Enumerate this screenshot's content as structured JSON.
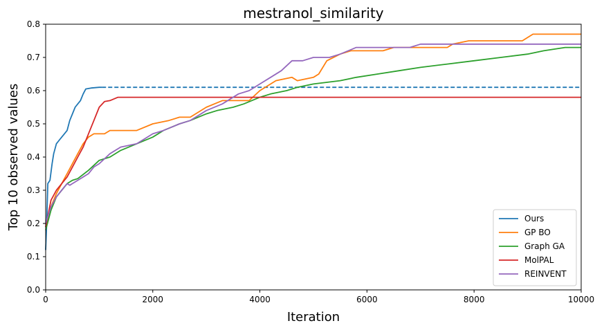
{
  "chart_data": {
    "type": "line",
    "title": "mestranol_similarity",
    "xlabel": "Iteration",
    "ylabel": "Top 10 observed values",
    "xlim": [
      0,
      10000
    ],
    "ylim": [
      0,
      0.8
    ],
    "x_ticks": [
      0,
      2000,
      4000,
      6000,
      8000,
      10000
    ],
    "x_tick_labels": [
      "0",
      "2000",
      "4000",
      "6000",
      "8000",
      "10000"
    ],
    "y_ticks": [
      0,
      0.1,
      0.2,
      0.3,
      0.4,
      0.5,
      0.6,
      0.7,
      0.8
    ],
    "y_tick_labels": [
      "0.0",
      "0.1",
      "0.2",
      "0.3",
      "0.4",
      "0.5",
      "0.6",
      "0.7",
      "0.8"
    ],
    "grid": false,
    "legend_position": "lower-right",
    "series": [
      {
        "name": "Ours",
        "color": "#1f77b4",
        "style": "solid",
        "points": [
          [
            0,
            0.12
          ],
          [
            20,
            0.2
          ],
          [
            40,
            0.32
          ],
          [
            80,
            0.33
          ],
          [
            120,
            0.38
          ],
          [
            150,
            0.41
          ],
          [
            200,
            0.44
          ],
          [
            250,
            0.45
          ],
          [
            300,
            0.46
          ],
          [
            350,
            0.47
          ],
          [
            400,
            0.48
          ],
          [
            450,
            0.51
          ],
          [
            500,
            0.53
          ],
          [
            550,
            0.55
          ],
          [
            600,
            0.56
          ],
          [
            650,
            0.57
          ],
          [
            700,
            0.59
          ],
          [
            750,
            0.605
          ],
          [
            850,
            0.608
          ],
          [
            1000,
            0.61
          ],
          [
            1050,
            0.61
          ]
        ],
        "extension": {
          "style": "dashed",
          "from_x": 1050,
          "to_x": 10000,
          "y": 0.61
        }
      },
      {
        "name": "GP BO",
        "color": "#ff7f0e",
        "style": "solid",
        "points": [
          [
            0,
            0.19
          ],
          [
            100,
            0.25
          ],
          [
            200,
            0.29
          ],
          [
            300,
            0.32
          ],
          [
            400,
            0.35
          ],
          [
            500,
            0.38
          ],
          [
            600,
            0.41
          ],
          [
            700,
            0.44
          ],
          [
            800,
            0.46
          ],
          [
            900,
            0.47
          ],
          [
            1100,
            0.47
          ],
          [
            1200,
            0.48
          ],
          [
            1700,
            0.48
          ],
          [
            2000,
            0.5
          ],
          [
            2300,
            0.51
          ],
          [
            2500,
            0.52
          ],
          [
            2700,
            0.52
          ],
          [
            3000,
            0.55
          ],
          [
            3300,
            0.57
          ],
          [
            3800,
            0.57
          ],
          [
            4000,
            0.6
          ],
          [
            4300,
            0.63
          ],
          [
            4600,
            0.64
          ],
          [
            4700,
            0.63
          ],
          [
            5000,
            0.64
          ],
          [
            5100,
            0.65
          ],
          [
            5250,
            0.69
          ],
          [
            5500,
            0.71
          ],
          [
            5700,
            0.72
          ],
          [
            6300,
            0.72
          ],
          [
            6500,
            0.73
          ],
          [
            7500,
            0.73
          ],
          [
            7600,
            0.74
          ],
          [
            7900,
            0.75
          ],
          [
            8900,
            0.75
          ],
          [
            9100,
            0.77
          ],
          [
            10000,
            0.77
          ]
        ]
      },
      {
        "name": "Graph GA",
        "color": "#2ca02c",
        "style": "solid",
        "points": [
          [
            0,
            0.18
          ],
          [
            100,
            0.24
          ],
          [
            200,
            0.28
          ],
          [
            300,
            0.3
          ],
          [
            400,
            0.32
          ],
          [
            500,
            0.33
          ],
          [
            600,
            0.335
          ],
          [
            800,
            0.36
          ],
          [
            1000,
            0.39
          ],
          [
            1200,
            0.4
          ],
          [
            1400,
            0.42
          ],
          [
            1700,
            0.44
          ],
          [
            2000,
            0.46
          ],
          [
            2200,
            0.48
          ],
          [
            2500,
            0.5
          ],
          [
            2700,
            0.51
          ],
          [
            3000,
            0.53
          ],
          [
            3200,
            0.54
          ],
          [
            3500,
            0.55
          ],
          [
            3700,
            0.56
          ],
          [
            4000,
            0.58
          ],
          [
            4200,
            0.59
          ],
          [
            4500,
            0.6
          ],
          [
            4700,
            0.61
          ],
          [
            5000,
            0.62
          ],
          [
            5500,
            0.63
          ],
          [
            5800,
            0.64
          ],
          [
            6200,
            0.65
          ],
          [
            6600,
            0.66
          ],
          [
            7000,
            0.67
          ],
          [
            7500,
            0.68
          ],
          [
            8000,
            0.69
          ],
          [
            8500,
            0.7
          ],
          [
            9000,
            0.71
          ],
          [
            9300,
            0.72
          ],
          [
            9700,
            0.73
          ],
          [
            10000,
            0.73
          ]
        ]
      },
      {
        "name": "MolPAL",
        "color": "#d62728",
        "style": "solid",
        "points": [
          [
            0,
            0.19
          ],
          [
            100,
            0.27
          ],
          [
            200,
            0.3
          ],
          [
            300,
            0.32
          ],
          [
            400,
            0.34
          ],
          [
            500,
            0.37
          ],
          [
            600,
            0.4
          ],
          [
            700,
            0.43
          ],
          [
            800,
            0.47
          ],
          [
            900,
            0.51
          ],
          [
            1000,
            0.55
          ],
          [
            1100,
            0.567
          ],
          [
            1200,
            0.57
          ],
          [
            1350,
            0.58
          ],
          [
            1500,
            0.58
          ],
          [
            10000,
            0.58
          ]
        ]
      },
      {
        "name": "REINVENT",
        "color": "#9467bd",
        "style": "solid",
        "points": [
          [
            0,
            0.2
          ],
          [
            100,
            0.25
          ],
          [
            200,
            0.28
          ],
          [
            300,
            0.3
          ],
          [
            400,
            0.32
          ],
          [
            450,
            0.315
          ],
          [
            500,
            0.32
          ],
          [
            600,
            0.33
          ],
          [
            700,
            0.34
          ],
          [
            800,
            0.35
          ],
          [
            900,
            0.37
          ],
          [
            1000,
            0.38
          ],
          [
            1200,
            0.41
          ],
          [
            1400,
            0.43
          ],
          [
            1700,
            0.44
          ],
          [
            2000,
            0.47
          ],
          [
            2200,
            0.48
          ],
          [
            2500,
            0.5
          ],
          [
            2700,
            0.51
          ],
          [
            3000,
            0.54
          ],
          [
            3300,
            0.56
          ],
          [
            3600,
            0.59
          ],
          [
            3800,
            0.6
          ],
          [
            4000,
            0.62
          ],
          [
            4200,
            0.64
          ],
          [
            4400,
            0.66
          ],
          [
            4600,
            0.69
          ],
          [
            4800,
            0.69
          ],
          [
            5000,
            0.7
          ],
          [
            5300,
            0.7
          ],
          [
            5500,
            0.71
          ],
          [
            5800,
            0.73
          ],
          [
            6800,
            0.73
          ],
          [
            7000,
            0.74
          ],
          [
            10000,
            0.74
          ]
        ]
      }
    ]
  }
}
